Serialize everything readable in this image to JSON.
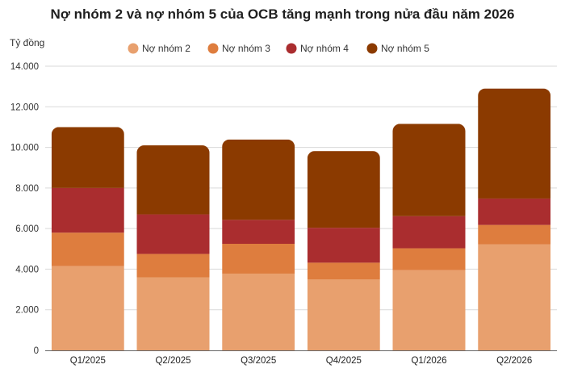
{
  "chart_data": {
    "type": "bar",
    "stacked": true,
    "title": "Nợ nhóm 2 và nợ nhóm 5 của OCB tăng mạnh trong nửa đầu năm 2026",
    "ylabel": "Tỷ đồng",
    "xlabel": "",
    "ylim": [
      0,
      14000
    ],
    "yticks": [
      0,
      2000,
      4000,
      6000,
      8000,
      10000,
      12000,
      14000
    ],
    "ytick_labels": [
      "0",
      "2.000",
      "4.000",
      "6.000",
      "8.000",
      "10.000",
      "12.000",
      "14.000"
    ],
    "grid": true,
    "legend_position": "top",
    "categories": [
      "Q1/2025",
      "Q2/2025",
      "Q3/2025",
      "Q4/2025",
      "Q1/2026",
      "Q2/2026"
    ],
    "series": [
      {
        "name": "Nợ nhóm 2",
        "color": "#E8A06E",
        "values": [
          4150,
          3600,
          3780,
          3500,
          3950,
          5230
        ]
      },
      {
        "name": "Nợ nhóm 3",
        "color": "#DE7D3E",
        "values": [
          1650,
          1150,
          1470,
          820,
          1080,
          950
        ]
      },
      {
        "name": "Nợ nhóm 4",
        "color": "#AA2D2F",
        "values": [
          2200,
          1950,
          1180,
          1720,
          1580,
          1300
        ]
      },
      {
        "name": "Nợ nhóm 5",
        "color": "#8B3A00",
        "values": [
          3000,
          3400,
          3960,
          3780,
          4550,
          5420
        ]
      }
    ]
  }
}
